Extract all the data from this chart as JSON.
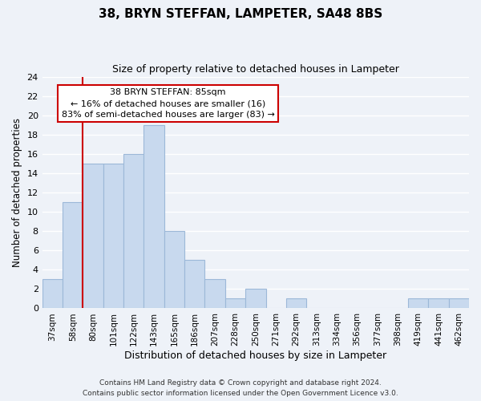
{
  "title": "38, BRYN STEFFAN, LAMPETER, SA48 8BS",
  "subtitle": "Size of property relative to detached houses in Lampeter",
  "xlabel": "Distribution of detached houses by size in Lampeter",
  "ylabel": "Number of detached properties",
  "bar_labels": [
    "37sqm",
    "58sqm",
    "80sqm",
    "101sqm",
    "122sqm",
    "143sqm",
    "165sqm",
    "186sqm",
    "207sqm",
    "228sqm",
    "250sqm",
    "271sqm",
    "292sqm",
    "313sqm",
    "334sqm",
    "356sqm",
    "377sqm",
    "398sqm",
    "419sqm",
    "441sqm",
    "462sqm"
  ],
  "bar_values": [
    3,
    11,
    15,
    15,
    16,
    19,
    8,
    5,
    3,
    1,
    2,
    0,
    1,
    0,
    0,
    0,
    0,
    0,
    1,
    1,
    1
  ],
  "bar_color": "#c8d9ee",
  "bar_edge_color": "#9cb8d8",
  "vline_color": "#cc0000",
  "vline_bar_index": 2,
  "annotation_box_text": "38 BRYN STEFFAN: 85sqm\n← 16% of detached houses are smaller (16)\n83% of semi-detached houses are larger (83) →",
  "ylim": [
    0,
    24
  ],
  "yticks": [
    0,
    2,
    4,
    6,
    8,
    10,
    12,
    14,
    16,
    18,
    20,
    22,
    24
  ],
  "footer": "Contains HM Land Registry data © Crown copyright and database right 2024.\nContains public sector information licensed under the Open Government Licence v3.0.",
  "background_color": "#eef2f8",
  "grid_color": "#ffffff",
  "title_fontsize": 11,
  "subtitle_fontsize": 9,
  "ylabel_fontsize": 8.5,
  "xlabel_fontsize": 9
}
